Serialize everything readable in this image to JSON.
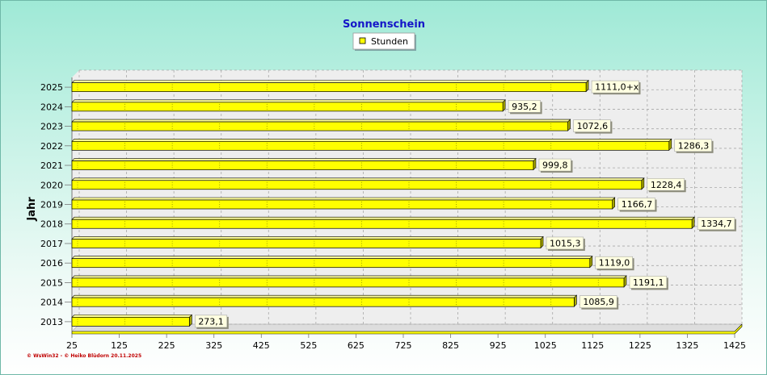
{
  "chart_data": {
    "type": "bar",
    "orientation": "horizontal",
    "title": "Sonnenschein",
    "ylabel": "Jahr",
    "xlabel": "",
    "legend": {
      "placement": "top-center",
      "entries": [
        "Stunden"
      ]
    },
    "grid": true,
    "xlim": [
      25,
      1425
    ],
    "x_ticks": [
      "25",
      "125",
      "225",
      "325",
      "425",
      "525",
      "625",
      "725",
      "825",
      "925",
      "1025",
      "1125",
      "1225",
      "1325",
      "1425"
    ],
    "categories": [
      "2025",
      "2024",
      "2023",
      "2022",
      "2021",
      "2020",
      "2019",
      "2018",
      "2017",
      "2016",
      "2015",
      "2014",
      "2013"
    ],
    "series": [
      {
        "name": "Stunden",
        "color": "#ffff00",
        "values": [
          1111.0,
          935.2,
          1072.6,
          1286.3,
          999.8,
          1228.4,
          1166.7,
          1334.7,
          1015.3,
          1119.0,
          1191.1,
          1085.9,
          273.1
        ],
        "labels": [
          "1111,0+x",
          "935,2",
          "1072,6",
          "1286,3",
          "999,8",
          "1228,4",
          "1166,7",
          "1334,7",
          "1015,3",
          "1119,0",
          "1191,1",
          "1085,9",
          "273,1"
        ]
      }
    ]
  },
  "footer": {
    "text": "© WsWin32 - © Heiko Blüdorn 20.11.2025"
  }
}
